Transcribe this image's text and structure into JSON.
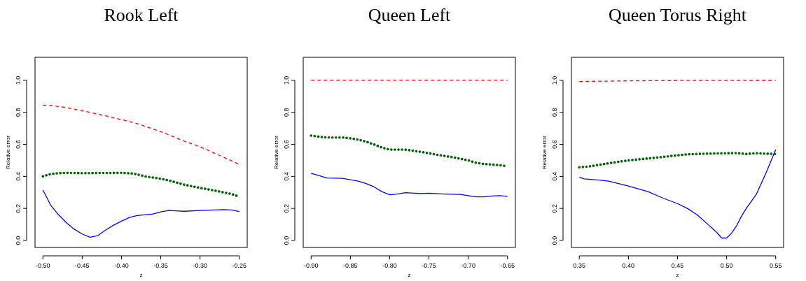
{
  "chart_data": [
    {
      "type": "line",
      "title": "Rook Left",
      "xlabel": "z",
      "ylabel": "Relative error",
      "xlim": [
        -0.51,
        -0.24
      ],
      "ylim": [
        -0.044,
        1.144
      ],
      "xticks": [
        {
          "value": -0.5,
          "label": "-0.50"
        },
        {
          "value": -0.45,
          "label": "-0.45"
        },
        {
          "value": -0.4,
          "label": "-0.40"
        },
        {
          "value": -0.35,
          "label": "-0.35"
        },
        {
          "value": -0.3,
          "label": "-0.30"
        },
        {
          "value": -0.25,
          "label": "-0.25"
        }
      ],
      "yticks": [
        {
          "value": 0,
          "label": "0.0"
        },
        {
          "value": 0.2,
          "label": "0.2"
        },
        {
          "value": 0.4,
          "label": "0.4"
        },
        {
          "value": 0.6,
          "label": "0.6"
        },
        {
          "value": 0.8,
          "label": "0.8"
        },
        {
          "value": 1,
          "label": "1.0"
        }
      ],
      "grid": false,
      "series": [
        {
          "color": "#ff0000",
          "line_style": "dashed",
          "x": [
            -0.5,
            -0.49,
            -0.47,
            -0.45,
            -0.43,
            -0.4,
            -0.38,
            -0.35,
            -0.32,
            -0.3,
            -0.27,
            -0.25
          ],
          "values": [
            0.845,
            0.843,
            0.83,
            0.81,
            0.79,
            0.755,
            0.73,
            0.68,
            0.62,
            0.585,
            0.52,
            0.475
          ]
        },
        {
          "color": "#006400",
          "line_style": "dotted",
          "x": [
            -0.5,
            -0.49,
            -0.48,
            -0.47,
            -0.45,
            -0.4,
            -0.385,
            -0.37,
            -0.35,
            -0.34,
            -0.32,
            -0.3,
            -0.28,
            -0.26,
            -0.25
          ],
          "values": [
            0.4,
            0.415,
            0.42,
            0.422,
            0.42,
            0.422,
            0.418,
            0.4,
            0.385,
            0.375,
            0.348,
            0.328,
            0.31,
            0.29,
            0.273
          ]
        },
        {
          "color": "#0000ff",
          "line_style": "solid",
          "x": [
            -0.5,
            -0.49,
            -0.48,
            -0.47,
            -0.46,
            -0.45,
            -0.44,
            -0.43,
            -0.42,
            -0.41,
            -0.4,
            -0.39,
            -0.38,
            -0.36,
            -0.35,
            -0.34,
            -0.32,
            -0.3,
            -0.27,
            -0.26,
            -0.25
          ],
          "values": [
            0.315,
            0.22,
            0.16,
            0.11,
            0.07,
            0.04,
            0.02,
            0.03,
            0.065,
            0.095,
            0.12,
            0.143,
            0.155,
            0.165,
            0.178,
            0.187,
            0.182,
            0.187,
            0.192,
            0.19,
            0.18
          ]
        }
      ]
    },
    {
      "type": "line",
      "title": "Queen Left",
      "xlabel": "z",
      "ylabel": "Relative error",
      "xlim": [
        -0.91,
        -0.64
      ],
      "ylim": [
        -0.044,
        1.144
      ],
      "xticks": [
        {
          "value": -0.9,
          "label": "-0.90"
        },
        {
          "value": -0.85,
          "label": "-0.85"
        },
        {
          "value": -0.8,
          "label": "-0.80"
        },
        {
          "value": -0.75,
          "label": "-0.75"
        },
        {
          "value": -0.7,
          "label": "-0.70"
        },
        {
          "value": -0.65,
          "label": "-0.65"
        }
      ],
      "yticks": [
        {
          "value": 0,
          "label": "0.0"
        },
        {
          "value": 0.2,
          "label": "0.2"
        },
        {
          "value": 0.4,
          "label": "0.4"
        },
        {
          "value": 0.6,
          "label": "0.6"
        },
        {
          "value": 0.8,
          "label": "0.8"
        },
        {
          "value": 1,
          "label": "1.0"
        }
      ],
      "grid": false,
      "series": [
        {
          "color": "#ff0000",
          "line_style": "dashed",
          "x": [
            -0.9,
            -0.8,
            -0.7,
            -0.65
          ],
          "values": [
            1.0,
            1.0,
            1.0,
            1.0
          ]
        },
        {
          "color": "#006400",
          "line_style": "dotted",
          "x": [
            -0.9,
            -0.89,
            -0.88,
            -0.86,
            -0.85,
            -0.84,
            -0.83,
            -0.82,
            -0.81,
            -0.8,
            -0.78,
            -0.76,
            -0.75,
            -0.74,
            -0.72,
            -0.7,
            -0.69,
            -0.68,
            -0.66,
            -0.65
          ],
          "values": [
            0.655,
            0.648,
            0.643,
            0.643,
            0.638,
            0.63,
            0.617,
            0.6,
            0.58,
            0.567,
            0.567,
            0.553,
            0.545,
            0.535,
            0.52,
            0.5,
            0.485,
            0.478,
            0.47,
            0.463
          ]
        },
        {
          "color": "#0000ff",
          "line_style": "solid",
          "x": [
            -0.9,
            -0.89,
            -0.88,
            -0.86,
            -0.84,
            -0.83,
            -0.82,
            -0.81,
            -0.8,
            -0.79,
            -0.78,
            -0.76,
            -0.75,
            -0.73,
            -0.71,
            -0.7,
            -0.69,
            -0.68,
            -0.67,
            -0.66,
            -0.65
          ],
          "values": [
            0.42,
            0.405,
            0.39,
            0.388,
            0.37,
            0.355,
            0.335,
            0.305,
            0.285,
            0.29,
            0.298,
            0.293,
            0.295,
            0.29,
            0.287,
            0.28,
            0.272,
            0.272,
            0.278,
            0.28,
            0.275
          ]
        }
      ]
    },
    {
      "type": "line",
      "title": "Queen Torus Right",
      "xlabel": "z",
      "ylabel": "Relative error",
      "xlim": [
        0.342,
        0.558
      ],
      "ylim": [
        -0.044,
        1.144
      ],
      "xticks": [
        {
          "value": 0.35,
          "label": "0.35"
        },
        {
          "value": 0.4,
          "label": "0.40"
        },
        {
          "value": 0.45,
          "label": "0.45"
        },
        {
          "value": 0.5,
          "label": "0.50"
        },
        {
          "value": 0.55,
          "label": "0.55"
        }
      ],
      "yticks": [
        {
          "value": 0,
          "label": "0.0"
        },
        {
          "value": 0.2,
          "label": "0.2"
        },
        {
          "value": 0.4,
          "label": "0.4"
        },
        {
          "value": 0.6,
          "label": "0.6"
        },
        {
          "value": 0.8,
          "label": "0.8"
        },
        {
          "value": 1,
          "label": "1.0"
        }
      ],
      "grid": false,
      "series": [
        {
          "color": "#ff0000",
          "line_style": "dashed",
          "x": [
            0.35,
            0.4,
            0.45,
            0.55
          ],
          "values": [
            0.993,
            0.997,
            0.999,
            1.0
          ]
        },
        {
          "color": "#006400",
          "line_style": "dotted",
          "x": [
            0.35,
            0.36,
            0.38,
            0.4,
            0.42,
            0.44,
            0.46,
            0.48,
            0.5,
            0.51,
            0.52,
            0.53,
            0.54,
            0.55
          ],
          "values": [
            0.457,
            0.462,
            0.482,
            0.5,
            0.512,
            0.525,
            0.538,
            0.542,
            0.545,
            0.546,
            0.54,
            0.545,
            0.542,
            0.54
          ]
        },
        {
          "color": "#0000ff",
          "line_style": "solid",
          "x": [
            0.35,
            0.355,
            0.37,
            0.38,
            0.4,
            0.42,
            0.435,
            0.45,
            0.46,
            0.47,
            0.48,
            0.49,
            0.495,
            0.5,
            0.505,
            0.51,
            0.515,
            0.52,
            0.53,
            0.54,
            0.55
          ],
          "values": [
            0.395,
            0.385,
            0.377,
            0.37,
            0.34,
            0.305,
            0.265,
            0.23,
            0.2,
            0.16,
            0.105,
            0.05,
            0.015,
            0.015,
            0.045,
            0.09,
            0.15,
            0.2,
            0.285,
            0.42,
            0.567
          ]
        }
      ]
    }
  ]
}
